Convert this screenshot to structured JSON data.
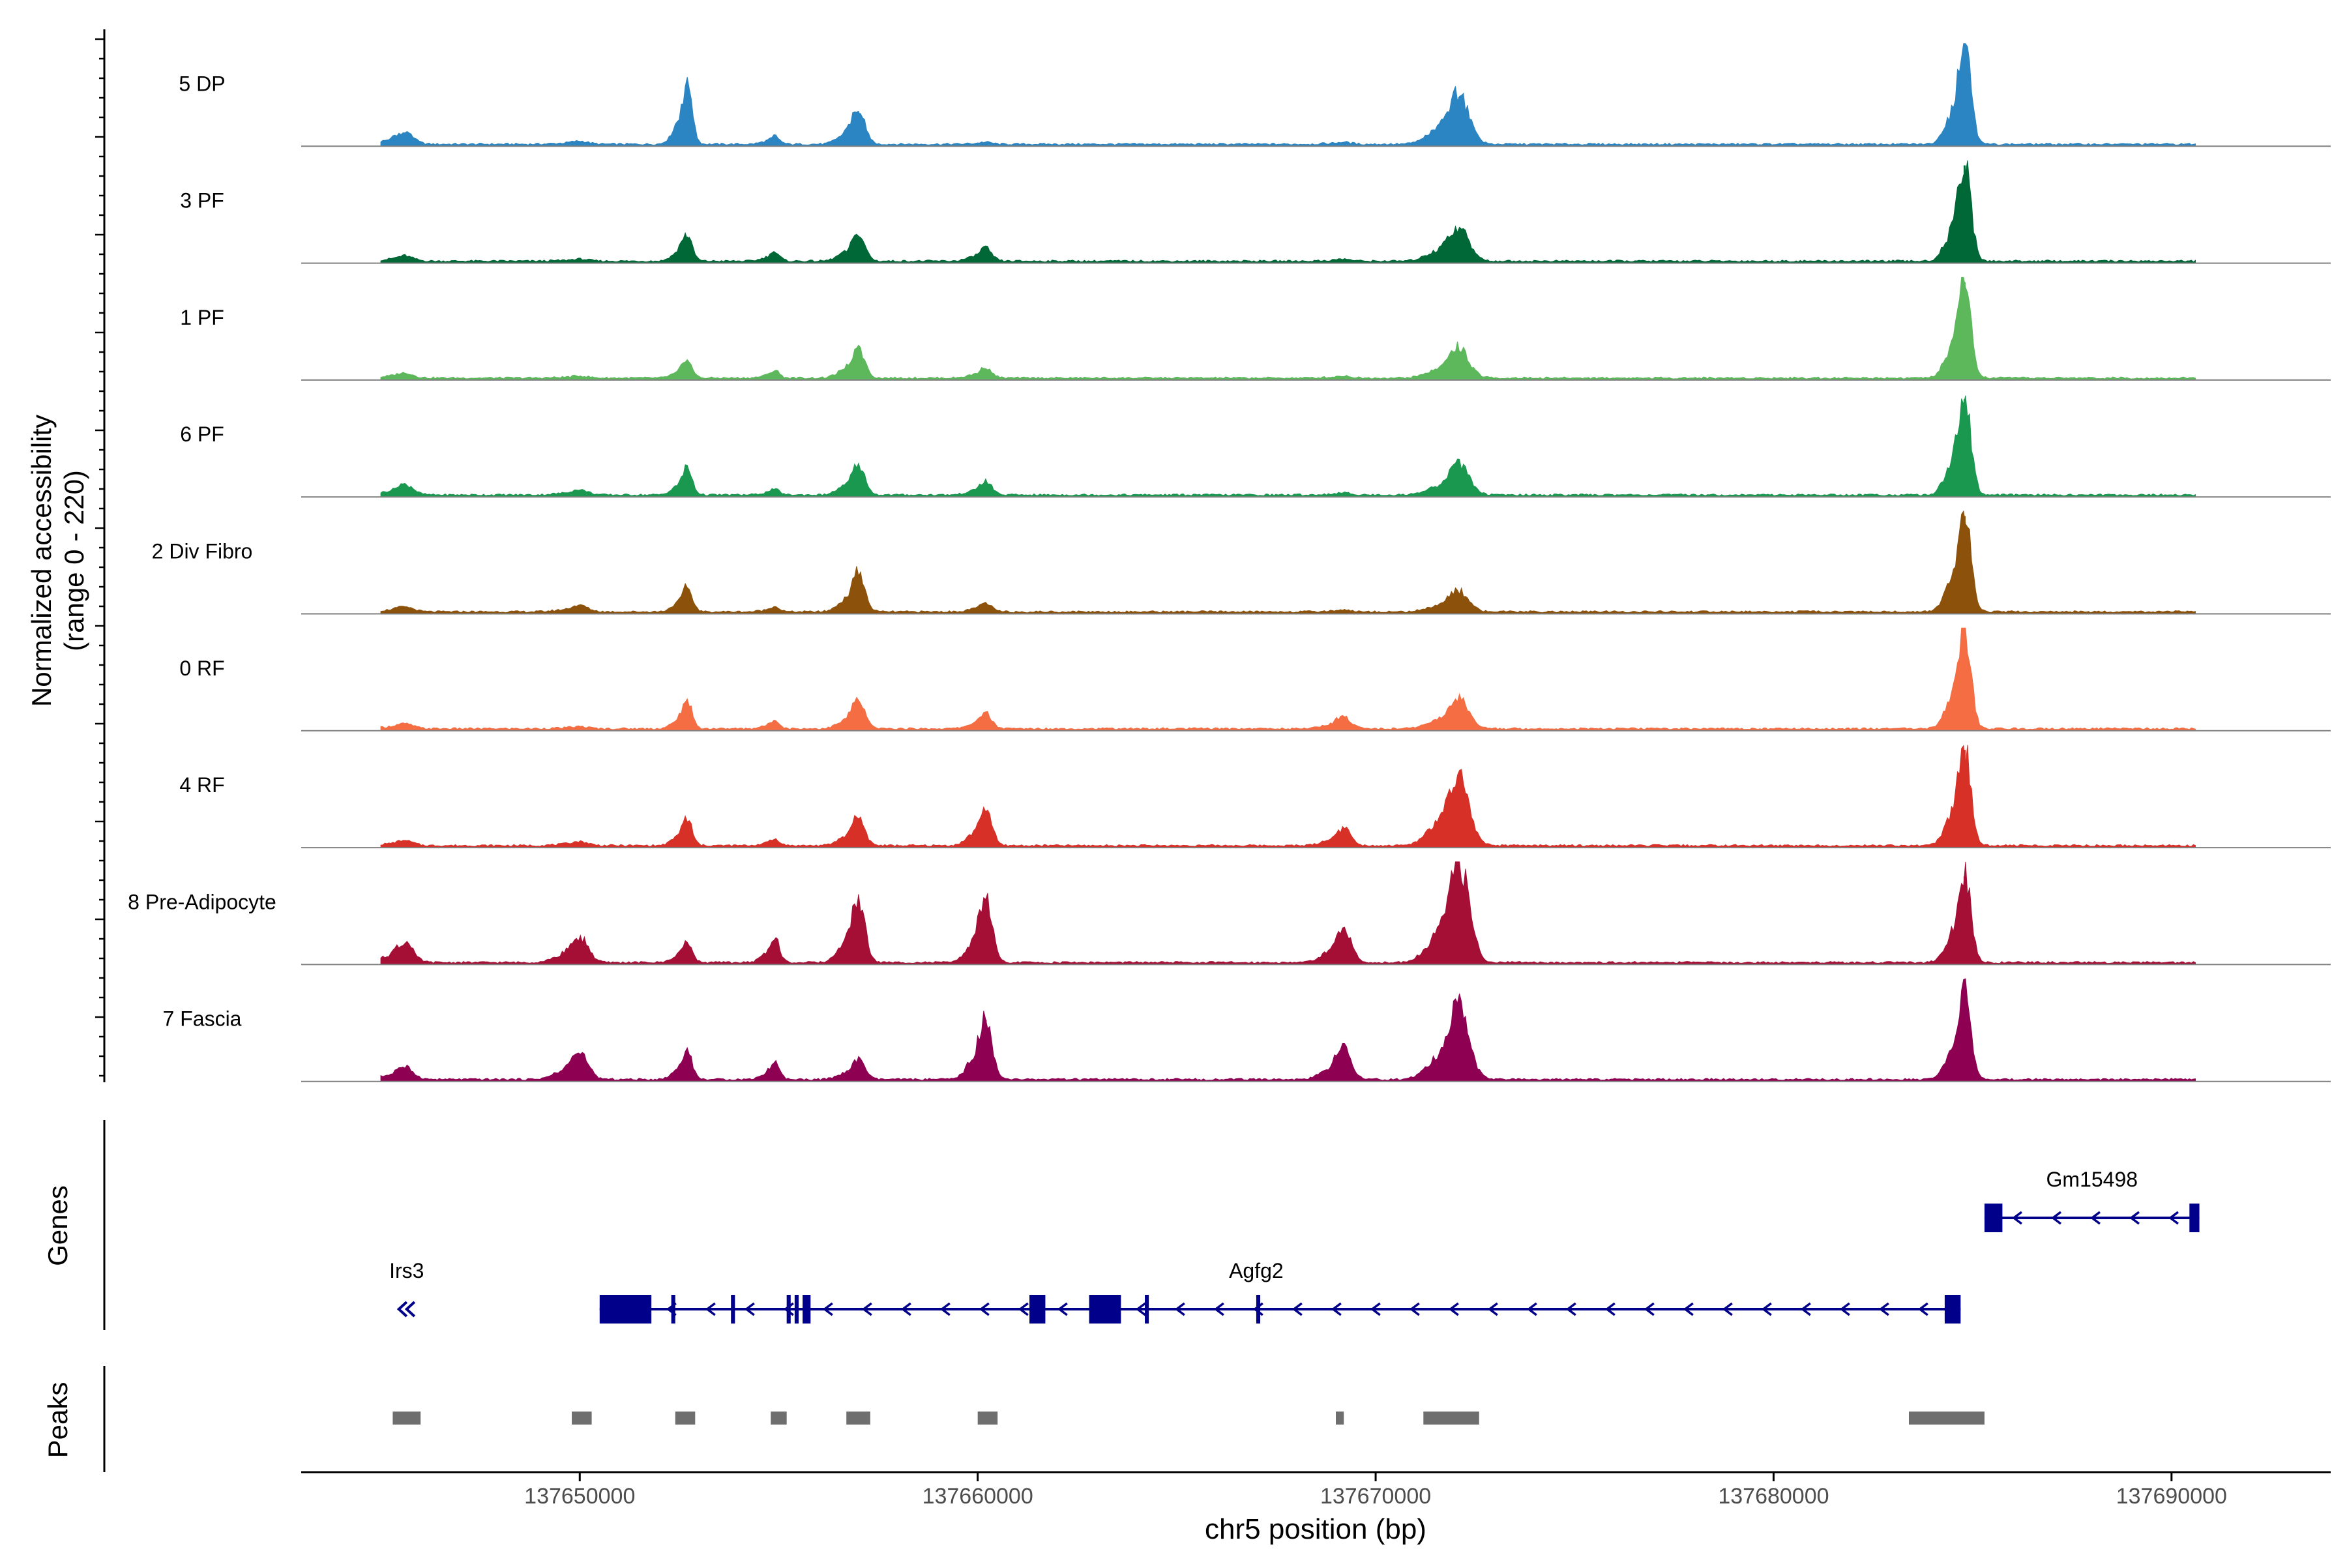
{
  "chart_data": {
    "type": "area",
    "region": {
      "chrom": "chr5",
      "start": 137643000,
      "end": 137694000
    },
    "ylabel_line1": "Normalized accessibility",
    "ylabel_line2": "(range 0 - 220)",
    "y_range": [
      0,
      220
    ],
    "xlabel": "chr5 position (bp)",
    "x_ticks": [
      {
        "value": 137650000,
        "label": "137650000"
      },
      {
        "value": 137660000,
        "label": "137660000"
      },
      {
        "value": 137670000,
        "label": "137670000"
      },
      {
        "value": 137680000,
        "label": "137680000"
      },
      {
        "value": 137690000,
        "label": "137690000"
      }
    ],
    "track_extent": [
      137645000,
      137690600
    ],
    "peak_centers": [
      137645600,
      137650000,
      137652700,
      137654900,
      137657000,
      137660200,
      137669200,
      137672100,
      137684800
    ],
    "peak_widths": [
      300,
      300,
      180,
      170,
      230,
      220,
      260,
      350,
      220
    ],
    "tracks": [
      {
        "name": "5 DP",
        "color": "#2b85c2",
        "heights": [
          0.12,
          0.03,
          0.58,
          0.08,
          0.36,
          0.02,
          0.02,
          0.5,
          1.0
        ]
      },
      {
        "name": "3 PF",
        "color": "#006837",
        "heights": [
          0.05,
          0.02,
          0.27,
          0.1,
          0.28,
          0.13,
          0.02,
          0.35,
          1.0
        ]
      },
      {
        "name": "1 PF",
        "color": "#5db85c",
        "heights": [
          0.05,
          0.02,
          0.17,
          0.07,
          0.28,
          0.1,
          0.02,
          0.3,
          1.0
        ]
      },
      {
        "name": "6 PF",
        "color": "#1a9850",
        "heights": [
          0.1,
          0.05,
          0.27,
          0.06,
          0.3,
          0.13,
          0.02,
          0.3,
          1.0
        ]
      },
      {
        "name": "2 Div Fibro",
        "color": "#8c510a",
        "heights": [
          0.05,
          0.06,
          0.25,
          0.05,
          0.38,
          0.08,
          0.02,
          0.2,
          1.0
        ]
      },
      {
        "name": "0 RF",
        "color": "#f46d43",
        "heights": [
          0.05,
          0.02,
          0.26,
          0.08,
          0.28,
          0.15,
          0.12,
          0.3,
          1.0
        ]
      },
      {
        "name": "4 RF",
        "color": "#d73027",
        "heights": [
          0.05,
          0.04,
          0.27,
          0.07,
          0.28,
          0.35,
          0.17,
          0.71,
          1.0
        ]
      },
      {
        "name": "8 Pre-Adipocyte",
        "color": "#a50f35",
        "heights": [
          0.2,
          0.25,
          0.2,
          0.25,
          0.63,
          0.67,
          0.35,
          1.0,
          0.9
        ]
      },
      {
        "name": "7 Fascia",
        "color": "#8e0152",
        "heights": [
          0.12,
          0.25,
          0.27,
          0.17,
          0.2,
          0.63,
          0.35,
          0.76,
          0.91
        ]
      }
    ],
    "genes_label": "Genes",
    "genes": [
      {
        "name": "Gm15498",
        "start": 137685300,
        "end": 137690700,
        "row": 0,
        "strand": "-",
        "exons": [
          [
            137685300,
            137685750
          ],
          [
            137690450,
            137690700
          ]
        ]
      },
      {
        "name": "Agfg2",
        "start": 137650500,
        "end": 137684700,
        "row": 1,
        "strand": "-",
        "exons": [
          [
            137650500,
            137651800
          ],
          [
            137652300,
            137652400
          ],
          [
            137653800,
            137653900
          ],
          [
            137655200,
            137655300
          ],
          [
            137655400,
            137655500
          ],
          [
            137655600,
            137655800
          ],
          [
            137661300,
            137661700
          ],
          [
            137662800,
            137663600
          ],
          [
            137664200,
            137664300
          ],
          [
            137667000,
            137667100
          ],
          [
            137684300,
            137684700
          ]
        ]
      },
      {
        "name": "Irs3",
        "start": 137645600,
        "end": 137645700,
        "row": 1,
        "strand": "-",
        "exons": []
      }
    ],
    "peaks_label": "Peaks",
    "peaks": [
      [
        137645300,
        137646000
      ],
      [
        137649800,
        137650300
      ],
      [
        137652400,
        137652900
      ],
      [
        137654800,
        137655200
      ],
      [
        137656700,
        137657300
      ],
      [
        137660000,
        137660500
      ],
      [
        137669000,
        137669200
      ],
      [
        137671200,
        137672600
      ],
      [
        137683400,
        137685300
      ]
    ]
  }
}
